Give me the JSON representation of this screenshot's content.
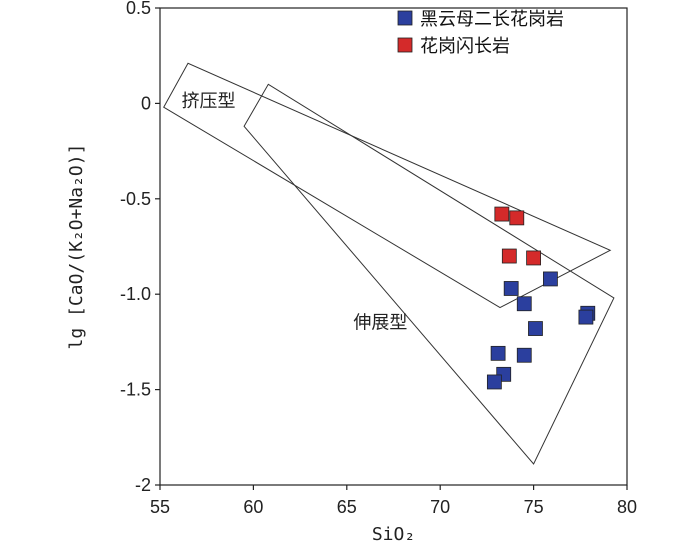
{
  "chart_data": {
    "type": "scatter",
    "xlabel": "SiO₂",
    "ylabel": "lg [CaO/(K₂O+Na₂O)]",
    "xlim": [
      55,
      80
    ],
    "ylim": [
      -2,
      0.5
    ],
    "x_ticks": [
      "55",
      "60",
      "65",
      "70",
      "75",
      "80"
    ],
    "y_ticks": [
      "0.5",
      "0",
      "-0.5",
      "-1.0",
      "-1.5",
      "-2"
    ],
    "x_tick_values": [
      55,
      60,
      65,
      70,
      75,
      80
    ],
    "y_tick_values": [
      0.5,
      0,
      -0.5,
      -1.0,
      -1.5,
      -2
    ],
    "legend": {
      "position": "top-right"
    },
    "series": [
      {
        "name": "黑云母二长花岗岩",
        "color": "#2b3f9e",
        "marker": "square",
        "points": [
          [
            73.8,
            -0.97
          ],
          [
            75.9,
            -0.92
          ],
          [
            74.5,
            -1.05
          ],
          [
            75.1,
            -1.18
          ],
          [
            73.1,
            -1.31
          ],
          [
            74.5,
            -1.32
          ],
          [
            73.4,
            -1.42
          ],
          [
            72.9,
            -1.46
          ],
          [
            77.9,
            -1.1
          ],
          [
            77.8,
            -1.12
          ]
        ]
      },
      {
        "name": "花岗闪长岩",
        "color": "#d42a2a",
        "marker": "square",
        "points": [
          [
            73.3,
            -0.58
          ],
          [
            74.1,
            -0.6
          ],
          [
            73.7,
            -0.8
          ],
          [
            75.0,
            -0.81
          ]
        ]
      }
    ],
    "regions": [
      {
        "label": "挤压型",
        "label_at": [
          57.6,
          -0.02
        ],
        "polygon": [
          [
            55.2,
            -0.02
          ],
          [
            56.5,
            0.21
          ],
          [
            79.1,
            -0.77
          ],
          [
            73.2,
            -1.07
          ]
        ]
      },
      {
        "label": "伸展型",
        "label_at": [
          66.8,
          -1.18
        ],
        "polygon": [
          [
            59.5,
            -0.12
          ],
          [
            60.8,
            0.1
          ],
          [
            79.3,
            -1.02
          ],
          [
            75.0,
            -1.89
          ]
        ]
      }
    ]
  }
}
